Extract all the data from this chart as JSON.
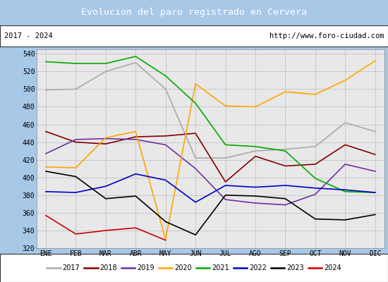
{
  "title": "Evolucion del paro registrado en Cervera",
  "subtitle_left": "2017 - 2024",
  "subtitle_right": "http://www.foro-ciudad.com",
  "title_bg_color": "#5b9bd5",
  "title_text_color": "#ffffff",
  "outer_bg_color": "#a8c8e8",
  "inner_bg_color": "#e8e8e8",
  "months": [
    "ENE",
    "FEB",
    "MAR",
    "ABR",
    "MAY",
    "JUN",
    "JUL",
    "AGO",
    "SEP",
    "OCT",
    "NOV",
    "DIC"
  ],
  "ylim": [
    320,
    545
  ],
  "yticks": [
    320,
    340,
    360,
    380,
    400,
    420,
    440,
    460,
    480,
    500,
    520,
    540
  ],
  "series": {
    "2017": {
      "color": "#aaaaaa",
      "data": [
        499,
        500,
        520,
        530,
        500,
        422,
        422,
        430,
        432,
        435,
        462,
        452
      ]
    },
    "2018": {
      "color": "#800000",
      "data": [
        452,
        440,
        438,
        446,
        447,
        450,
        395,
        424,
        413,
        415,
        437,
        426
      ]
    },
    "2019": {
      "color": "#7030a0",
      "data": [
        427,
        443,
        444,
        443,
        437,
        410,
        375,
        371,
        369,
        381,
        415,
        407
      ]
    },
    "2020": {
      "color": "#ffa500",
      "data": [
        412,
        411,
        445,
        452,
        330,
        506,
        481,
        480,
        497,
        494,
        510,
        532
      ]
    },
    "2021": {
      "color": "#00aa00",
      "data": [
        531,
        529,
        529,
        537,
        515,
        484,
        437,
        435,
        430,
        399,
        384,
        383
      ]
    },
    "2022": {
      "color": "#0000cc",
      "data": [
        384,
        383,
        390,
        404,
        397,
        372,
        391,
        389,
        391,
        388,
        386,
        383
      ]
    },
    "2023": {
      "color": "#000000",
      "data": [
        407,
        401,
        376,
        379,
        350,
        335,
        380,
        379,
        376,
        353,
        352,
        358
      ]
    },
    "2024": {
      "color": "#cc0000",
      "data": [
        357,
        336,
        340,
        343,
        329,
        null,
        null,
        null,
        null,
        null,
        null,
        null
      ]
    }
  }
}
